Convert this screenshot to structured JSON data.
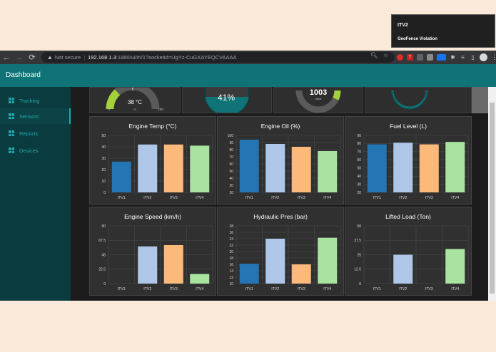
{
  "browser": {
    "security_label": "Not secure",
    "url_host": "192.168.1.3",
    "url_path": ":1880/ui/#!/1?socketid=UgYz-CuGXAYEQCVAAAA"
  },
  "header": {
    "title": "Dashboard"
  },
  "sidebar": {
    "items": [
      {
        "label": "Tracking",
        "active": false
      },
      {
        "label": "Sensors",
        "active": true
      },
      {
        "label": "Reports",
        "active": false
      },
      {
        "label": "Devices",
        "active": false
      }
    ]
  },
  "gauges": [
    {
      "value": "38 °C",
      "unit": "°C",
      "min": "0",
      "max": "100",
      "level": 0.38
    },
    {
      "value": "41%",
      "level": 0.41
    },
    {
      "value": "1003",
      "unit": "mbar",
      "level": 0.5
    },
    {
      "value": "",
      "level": 0.3
    }
  ],
  "notification": {
    "title": "ITV2",
    "message": "GeoFence Violation"
  },
  "colors": {
    "accent": "#0f7377",
    "sidebar": "#0a3b3e",
    "gauge_green": "#a2d13c",
    "itv1": "#2475b3",
    "itv2": "#aec7e8",
    "itv3": "#fdb97a",
    "itv4": "#a8e3a0"
  },
  "chart_data": [
    {
      "type": "bar",
      "title": "Engine Temp (°C)",
      "categories": [
        "ITV1",
        "ITV2",
        "ITV3",
        "ITV4"
      ],
      "values": [
        27,
        42,
        42,
        41
      ],
      "ylim": [
        0,
        50
      ],
      "yticks": [
        0,
        10,
        20,
        30,
        40,
        50
      ]
    },
    {
      "type": "bar",
      "title": "Engine Oil (%)",
      "categories": [
        "ITV1",
        "ITV2",
        "ITV3",
        "ITV4"
      ],
      "values": [
        94,
        88,
        84,
        78
      ],
      "ylim": [
        20,
        100
      ],
      "yticks": [
        20,
        30,
        40,
        50,
        60,
        70,
        80,
        90,
        100
      ]
    },
    {
      "type": "bar",
      "title": "Fuel Level (L)",
      "categories": [
        "ITV1",
        "ITV2",
        "ITV3",
        "ITV4"
      ],
      "values": [
        79,
        81,
        79,
        82
      ],
      "ylim": [
        20,
        90
      ],
      "yticks": [
        20,
        30,
        40,
        50,
        60,
        70,
        80,
        90
      ]
    },
    {
      "type": "bar",
      "title": "Engine Speed (km/h)",
      "categories": [
        "ITV1",
        "ITV2",
        "ITV3",
        "ITV4"
      ],
      "values": [
        0,
        58,
        60,
        15
      ],
      "ylim": [
        0,
        90
      ],
      "yticks": [
        0,
        22.5,
        45,
        67.5,
        90
      ]
    },
    {
      "type": "bar",
      "title": "Hydraulic Pres (bar)",
      "categories": [
        "ITV1",
        "ITV2",
        "ITV3",
        "ITV4"
      ],
      "values": [
        16.2,
        24,
        16,
        24.3
      ],
      "ylim": [
        10,
        28
      ],
      "yticks": [
        10,
        12,
        14,
        16,
        18,
        20,
        22,
        24,
        26,
        28
      ]
    },
    {
      "type": "bar",
      "title": "Lifted Load (Ton)",
      "categories": [
        "ITV1",
        "ITV2",
        "ITV3",
        "ITV4"
      ],
      "values": [
        0,
        25,
        0,
        30
      ],
      "ylim": [
        0,
        50
      ],
      "yticks": [
        0,
        12.5,
        25,
        37.5,
        50
      ]
    }
  ]
}
